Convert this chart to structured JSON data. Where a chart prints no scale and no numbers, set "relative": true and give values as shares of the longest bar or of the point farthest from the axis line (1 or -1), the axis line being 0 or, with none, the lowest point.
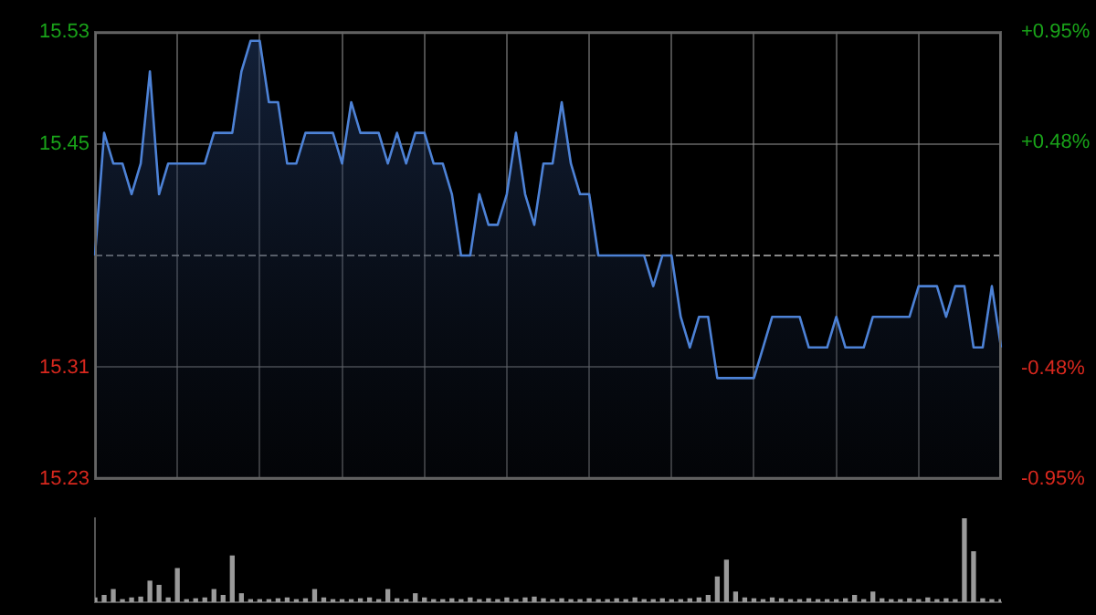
{
  "chart_data": [
    {
      "type": "area",
      "categories": [
        null,
        null,
        null,
        null,
        null,
        null,
        null,
        null,
        null,
        null,
        null,
        null,
        null,
        null,
        null,
        null,
        null,
        null,
        null,
        null,
        null,
        null,
        null,
        null,
        null,
        null,
        null,
        null,
        null,
        null,
        null,
        null,
        null,
        null,
        null,
        null,
        null,
        null,
        null,
        null,
        null,
        null,
        null,
        null,
        null,
        null,
        null,
        null,
        null,
        null,
        null,
        null,
        null,
        null,
        null,
        null,
        null,
        null,
        null,
        null,
        null,
        null,
        null,
        null,
        null,
        null,
        null,
        null,
        null,
        null,
        null,
        null,
        null,
        null,
        null,
        null,
        null,
        null,
        null,
        null,
        null,
        null,
        null,
        null,
        null,
        null,
        null,
        null,
        null,
        null,
        null,
        null,
        null,
        null,
        null,
        null,
        null,
        null,
        null,
        null
      ],
      "series": [
        {
          "color": "#4d82d6",
          "values": [
            15.38,
            15.46,
            15.44,
            15.44,
            15.42,
            15.44,
            15.5,
            15.42,
            15.44,
            15.44,
            15.44,
            15.44,
            15.44,
            15.46,
            15.46,
            15.46,
            15.5,
            15.52,
            15.52,
            15.48,
            15.48,
            15.44,
            15.44,
            15.46,
            15.46,
            15.46,
            15.46,
            15.44,
            15.48,
            15.46,
            15.46,
            15.46,
            15.44,
            15.46,
            15.44,
            15.46,
            15.46,
            15.44,
            15.44,
            15.42,
            15.38,
            15.38,
            15.42,
            15.4,
            15.4,
            15.42,
            15.46,
            15.42,
            15.4,
            15.44,
            15.44,
            15.48,
            15.44,
            15.42,
            15.42,
            15.38,
            15.38,
            15.38,
            15.38,
            15.38,
            15.38,
            15.36,
            15.38,
            15.38,
            15.34,
            15.32,
            15.34,
            15.34,
            15.3,
            15.3,
            15.3,
            15.3,
            15.3,
            15.32,
            15.34,
            15.34,
            15.34,
            15.34,
            15.32,
            15.32,
            15.32,
            15.34,
            15.32,
            15.32,
            15.32,
            15.34,
            15.34,
            15.34,
            15.34,
            15.34,
            15.36,
            15.36,
            15.36,
            15.34,
            15.36,
            15.36,
            15.32,
            15.32,
            15.36,
            15.32
          ]
        }
      ],
      "ylim": [
        15.2343,
        15.5257
      ],
      "yticks": [
        {
          "value": 15.2343,
          "label": "15.23"
        },
        {
          "value": 15.3071,
          "label": "15.31"
        },
        {
          "value": 15.4529,
          "label": "15.45"
        },
        {
          "value": 15.5257,
          "label": "15.53"
        }
      ],
      "y2lim": [
        -0.95,
        0.95
      ],
      "y2ticks": [
        {
          "value": -0.95,
          "label": "-0.95%"
        },
        {
          "value": -0.48,
          "label": "-0.48%"
        },
        {
          "value": 0.48,
          "label": "+0.48%"
        },
        {
          "value": 0.95,
          "label": "+0.95%"
        }
      ],
      "ref_lines": [
        {
          "axis": "y",
          "value": 15.38,
          "line_style": "dashed"
        }
      ],
      "grid": true,
      "tick_labels": "y"
    },
    {
      "type": "bar",
      "relative": true,
      "color": "#9a9a9a",
      "tick_labels": false,
      "categories": [
        null,
        null,
        null,
        null,
        null,
        null,
        null,
        null,
        null,
        null,
        null,
        null,
        null,
        null,
        null,
        null,
        null,
        null,
        null,
        null,
        null,
        null,
        null,
        null,
        null,
        null,
        null,
        null,
        null,
        null,
        null,
        null,
        null,
        null,
        null,
        null,
        null,
        null,
        null,
        null,
        null,
        null,
        null,
        null,
        null,
        null,
        null,
        null,
        null,
        null,
        null,
        null,
        null,
        null,
        null,
        null,
        null,
        null,
        null,
        null,
        null,
        null,
        null,
        null,
        null,
        null,
        null,
        null,
        null,
        null,
        null,
        null,
        null,
        null,
        null,
        null,
        null,
        null,
        null,
        null,
        null,
        null,
        null,
        null,
        null,
        null,
        null,
        null,
        null,
        null,
        null,
        null,
        null,
        null,
        null,
        null,
        null,
        null,
        null,
        null
      ],
      "values": [
        0.05,
        0.08,
        0.15,
        0.03,
        0.05,
        0.06,
        0.25,
        0.2,
        0.05,
        0.4,
        0.03,
        0.04,
        0.05,
        0.15,
        0.08,
        0.55,
        0.1,
        0.03,
        0.03,
        0.03,
        0.04,
        0.05,
        0.03,
        0.04,
        0.15,
        0.05,
        0.03,
        0.03,
        0.03,
        0.04,
        0.05,
        0.03,
        0.15,
        0.04,
        0.03,
        0.1,
        0.05,
        0.03,
        0.03,
        0.04,
        0.03,
        0.05,
        0.03,
        0.04,
        0.03,
        0.05,
        0.03,
        0.05,
        0.06,
        0.04,
        0.03,
        0.04,
        0.03,
        0.03,
        0.04,
        0.03,
        0.03,
        0.04,
        0.03,
        0.05,
        0.03,
        0.03,
        0.04,
        0.03,
        0.03,
        0.04,
        0.05,
        0.08,
        0.3,
        0.5,
        0.12,
        0.05,
        0.04,
        0.03,
        0.05,
        0.04,
        0.03,
        0.03,
        0.04,
        0.03,
        0.03,
        0.03,
        0.04,
        0.08,
        0.03,
        0.12,
        0.04,
        0.03,
        0.03,
        0.04,
        0.03,
        0.05,
        0.03,
        0.04,
        0.03,
        1,
        0.6,
        0.04,
        0.03,
        0.03
      ]
    }
  ]
}
